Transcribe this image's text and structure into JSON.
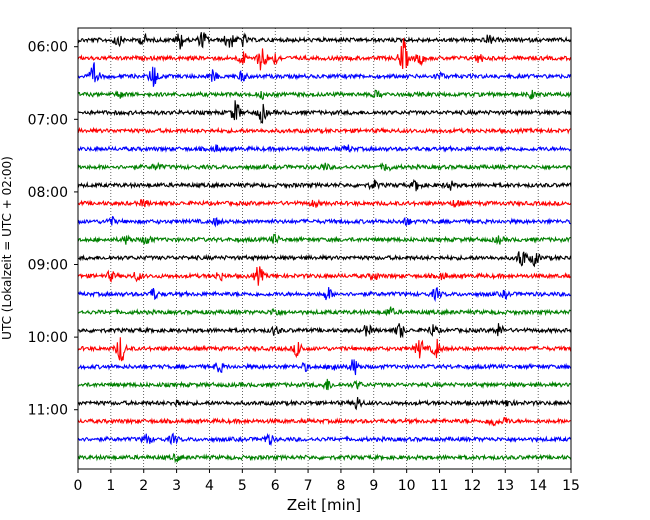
{
  "chart_data": {
    "type": "line",
    "title": "",
    "xlabel": "Zeit  [min]",
    "ylabel": "UTC (Lokalzeit = UTC + 02:00)",
    "xlim": [
      0,
      15
    ],
    "x_ticks": [
      "0",
      "1",
      "2",
      "3",
      "4",
      "5",
      "6",
      "7",
      "8",
      "9",
      "10",
      "11",
      "12",
      "13",
      "14",
      "15"
    ],
    "y_ticks": [
      "06:00",
      "07:00",
      "08:00",
      "09:00",
      "10:00",
      "11:00"
    ],
    "grid": "vertical dotted lines at each minute",
    "trace_interval_min": 15,
    "colors": [
      "#000000",
      "#ff0000",
      "#0000ff",
      "#008000"
    ],
    "traces": [
      {
        "start": "05:45",
        "color": "#000000",
        "events": [
          [
            1.2,
            5
          ],
          [
            2.0,
            5
          ],
          [
            3.1,
            8
          ],
          [
            3.8,
            8
          ],
          [
            4.6,
            10
          ],
          [
            5.0,
            6
          ],
          [
            12.5,
            4
          ]
        ]
      },
      {
        "start": "06:00",
        "color": "#ff0000",
        "events": [
          [
            5.0,
            6
          ],
          [
            5.6,
            14
          ],
          [
            6.0,
            5
          ],
          [
            9.9,
            18
          ],
          [
            10.4,
            6
          ],
          [
            12.2,
            4
          ]
        ]
      },
      {
        "start": "06:15",
        "color": "#0000ff",
        "events": [
          [
            0.5,
            12
          ],
          [
            2.3,
            11
          ],
          [
            4.1,
            5
          ],
          [
            5.0,
            4
          ],
          [
            11.0,
            3
          ]
        ]
      },
      {
        "start": "06:30",
        "color": "#008000",
        "events": [
          [
            1.3,
            3
          ],
          [
            5.6,
            3
          ],
          [
            9.1,
            3
          ],
          [
            13.8,
            3
          ]
        ]
      },
      {
        "start": "06:45",
        "color": "#000000",
        "events": [
          [
            4.8,
            11
          ],
          [
            5.6,
            9
          ]
        ]
      },
      {
        "start": "07:00",
        "color": "#ff0000",
        "events": []
      },
      {
        "start": "07:15",
        "color": "#0000ff",
        "events": [
          [
            4.2,
            3
          ],
          [
            8.2,
            3
          ]
        ]
      },
      {
        "start": "07:30",
        "color": "#008000",
        "events": [
          [
            2.4,
            3
          ],
          [
            7.5,
            3
          ],
          [
            9.4,
            4
          ]
        ]
      },
      {
        "start": "07:45",
        "color": "#000000",
        "events": [
          [
            9.0,
            4
          ],
          [
            10.3,
            5
          ],
          [
            11.3,
            4
          ]
        ]
      },
      {
        "start": "08:00",
        "color": "#ff0000",
        "events": [
          [
            2.0,
            3
          ],
          [
            7.2,
            3
          ],
          [
            11.5,
            3
          ]
        ]
      },
      {
        "start": "08:15",
        "color": "#0000ff",
        "events": [
          [
            1.0,
            4
          ],
          [
            4.2,
            3
          ],
          [
            10.0,
            3
          ]
        ]
      },
      {
        "start": "08:30",
        "color": "#008000",
        "events": [
          [
            1.5,
            4
          ],
          [
            2.1,
            5
          ],
          [
            6.0,
            4
          ],
          [
            12.8,
            3
          ]
        ]
      },
      {
        "start": "08:45",
        "color": "#000000",
        "events": [
          [
            13.5,
            10
          ],
          [
            13.9,
            7
          ]
        ]
      },
      {
        "start": "09:00",
        "color": "#ff0000",
        "events": [
          [
            1.0,
            4
          ],
          [
            1.8,
            4
          ],
          [
            4.3,
            4
          ],
          [
            5.5,
            9
          ],
          [
            9.0,
            4
          ],
          [
            11.1,
            3
          ]
        ]
      },
      {
        "start": "09:15",
        "color": "#0000ff",
        "events": [
          [
            2.3,
            5
          ],
          [
            7.6,
            6
          ],
          [
            10.9,
            5
          ],
          [
            13.0,
            3
          ]
        ]
      },
      {
        "start": "09:30",
        "color": "#008000",
        "events": [
          [
            6.0,
            4
          ],
          [
            9.5,
            4
          ]
        ]
      },
      {
        "start": "09:45",
        "color": "#000000",
        "events": [
          [
            6.0,
            4
          ],
          [
            8.8,
            5
          ],
          [
            9.8,
            7
          ],
          [
            10.8,
            5
          ],
          [
            12.8,
            6
          ]
        ]
      },
      {
        "start": "10:00",
        "color": "#ff0000",
        "events": [
          [
            1.3,
            14
          ],
          [
            6.7,
            8
          ],
          [
            10.4,
            9
          ],
          [
            10.9,
            9
          ]
        ]
      },
      {
        "start": "10:15",
        "color": "#0000ff",
        "events": [
          [
            4.3,
            5
          ],
          [
            6.9,
            3
          ],
          [
            7.8,
            4
          ],
          [
            8.4,
            8
          ]
        ]
      },
      {
        "start": "10:30",
        "color": "#008000",
        "events": [
          [
            7.6,
            5
          ],
          [
            8.5,
            3
          ]
        ]
      },
      {
        "start": "10:45",
        "color": "#000000",
        "events": [
          [
            3.0,
            3
          ],
          [
            8.5,
            6
          ],
          [
            13.1,
            3
          ]
        ]
      },
      {
        "start": "11:00",
        "color": "#ff0000",
        "events": [
          [
            12.6,
            5
          ],
          [
            13.0,
            3
          ]
        ]
      },
      {
        "start": "11:15",
        "color": "#0000ff",
        "events": [
          [
            2.1,
            5
          ],
          [
            2.9,
            4
          ],
          [
            5.8,
            5
          ]
        ]
      },
      {
        "start": "11:30",
        "color": "#008000",
        "events": [
          [
            3.0,
            3
          ]
        ]
      }
    ]
  }
}
